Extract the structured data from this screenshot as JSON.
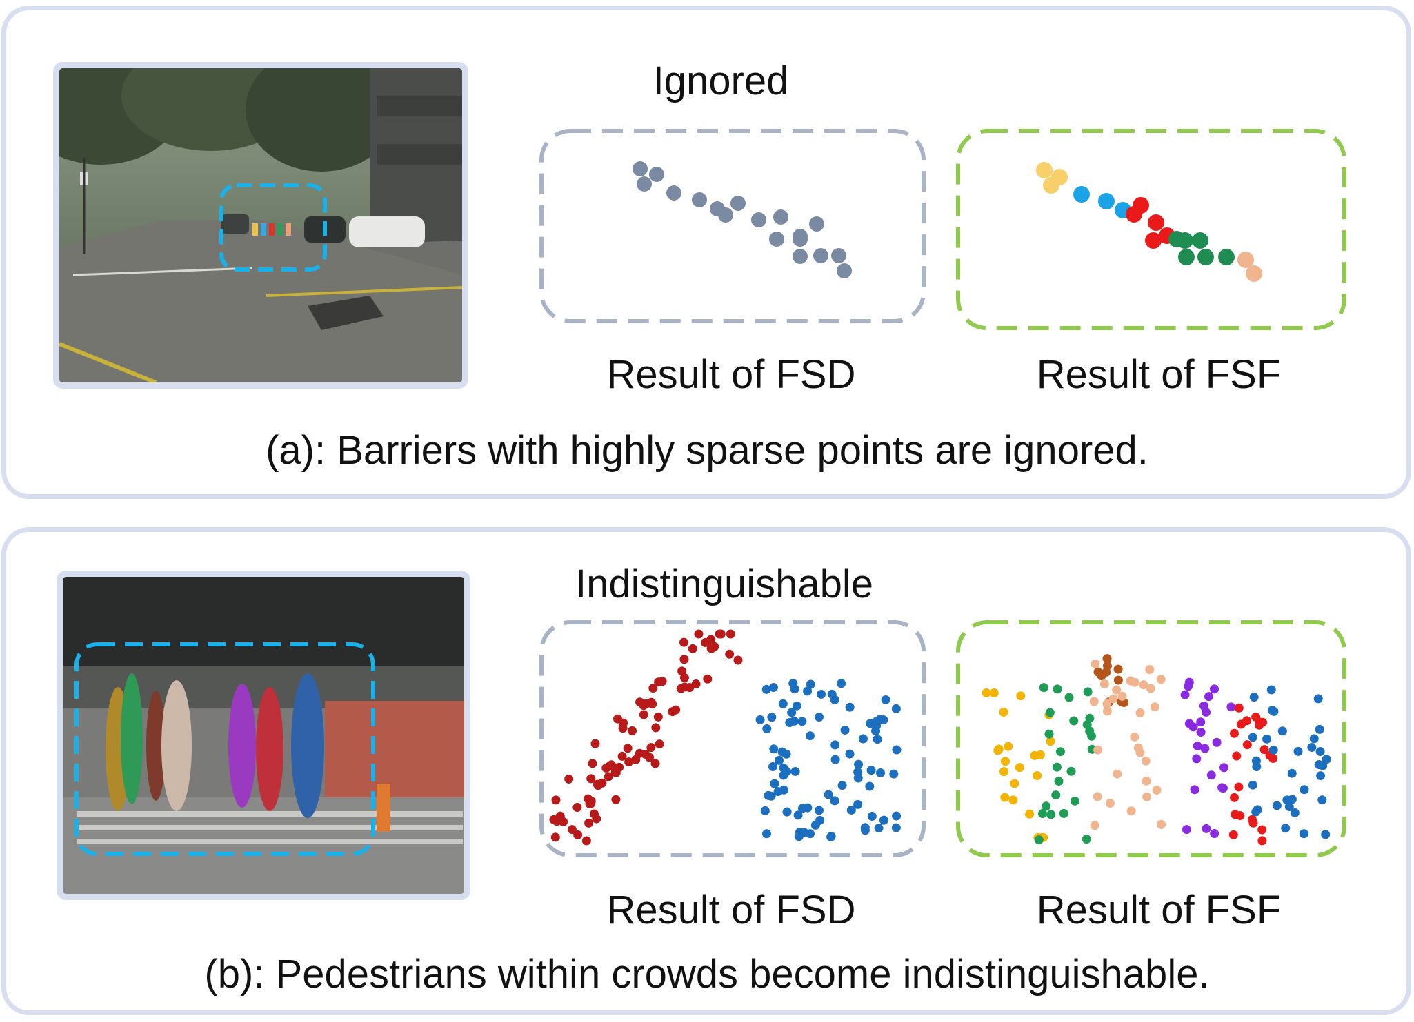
{
  "colors": {
    "panel_border": "#d6def0",
    "fsd_box": "#a9b3c6",
    "fsf_box": "#8fca4c",
    "highlight_box": "#1ab0ea",
    "fsd_point_gray": "#7a8aa3",
    "fsd_point_red": "#b81a1a",
    "fsd_point_blue": "#1c6fbe"
  },
  "panel_a": {
    "top_label": "Ignored",
    "fsd_label": "Result of FSD",
    "fsf_label": "Result of FSF",
    "caption": "(a):  Barriers with highly sparse points are ignored."
  },
  "panel_b": {
    "top_label": "Indistinguishable",
    "fsd_label": "Result of FSD",
    "fsf_label": "Result of FSF",
    "caption": "(b): Pedestrians within crowds become indistinguishable."
  }
}
